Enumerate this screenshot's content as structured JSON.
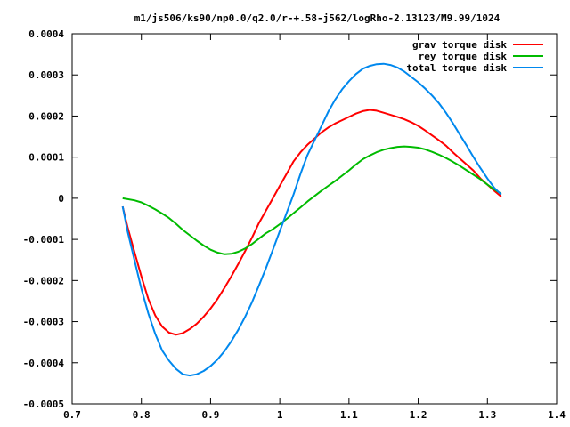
{
  "chart_data": {
    "type": "line",
    "title": "m1/js506/ks90/np0.0/q2.0/r-+.58-j562/logRho-2.13123/M9.99/1024",
    "xlabel": "",
    "ylabel": "",
    "xlim": [
      0.7,
      1.4
    ],
    "ylim": [
      -0.0005,
      0.0004
    ],
    "xticks": [
      0.7,
      0.8,
      0.9,
      1.0,
      1.1,
      1.2,
      1.3,
      1.4
    ],
    "xtick_labels": [
      "0.7",
      "0.8",
      "0.9",
      "1",
      "1.1",
      "1.2",
      "1.3",
      "1.4"
    ],
    "yticks": [
      -0.0005,
      -0.0004,
      -0.0003,
      -0.0002,
      -0.0001,
      0,
      0.0001,
      0.0002,
      0.0003,
      0.0004
    ],
    "ytick_labels": [
      "-0.0005",
      "-0.0004",
      "-0.0003",
      "-0.0002",
      "-0.0001",
      "0",
      "0.0001",
      "0.0002",
      "0.0003",
      "0.0004"
    ],
    "grid": false,
    "legend_position": "top-right",
    "series": [
      {
        "name": "grav torque disk",
        "color": "#ff0000",
        "x": [
          0.773,
          0.78,
          0.79,
          0.8,
          0.81,
          0.82,
          0.83,
          0.84,
          0.85,
          0.86,
          0.87,
          0.88,
          0.89,
          0.9,
          0.91,
          0.92,
          0.93,
          0.94,
          0.95,
          0.96,
          0.97,
          0.98,
          0.99,
          1.0,
          1.01,
          1.02,
          1.03,
          1.04,
          1.05,
          1.06,
          1.07,
          1.08,
          1.09,
          1.1,
          1.11,
          1.12,
          1.13,
          1.14,
          1.15,
          1.16,
          1.17,
          1.18,
          1.19,
          1.2,
          1.21,
          1.22,
          1.23,
          1.24,
          1.25,
          1.26,
          1.27,
          1.28,
          1.29,
          1.3,
          1.31,
          1.32
        ],
        "y": [
          -2e-05,
          -7e-05,
          -0.00013,
          -0.00019,
          -0.000245,
          -0.000285,
          -0.000312,
          -0.000327,
          -0.000332,
          -0.000328,
          -0.000318,
          -0.000305,
          -0.000288,
          -0.000268,
          -0.000245,
          -0.000218,
          -0.00019,
          -0.00016,
          -0.000128,
          -9.5e-05,
          -6e-05,
          -3e-05,
          0.0,
          3e-05,
          6e-05,
          9e-05,
          0.000112,
          0.00013,
          0.000145,
          0.00016,
          0.000172,
          0.000182,
          0.00019,
          0.000198,
          0.000206,
          0.000212,
          0.000215,
          0.000213,
          0.000208,
          0.000203,
          0.000198,
          0.000192,
          0.000185,
          0.000176,
          0.000165,
          0.000153,
          0.000141,
          0.000128,
          0.000112,
          9.7e-05,
          8.2e-05,
          6.7e-05,
          4.8e-05,
          3.3e-05,
          1.8e-05,
          4e-06
        ]
      },
      {
        "name": "rey torque disk",
        "color": "#00bb00",
        "x": [
          0.773,
          0.79,
          0.8,
          0.81,
          0.82,
          0.83,
          0.84,
          0.85,
          0.86,
          0.87,
          0.88,
          0.89,
          0.9,
          0.91,
          0.92,
          0.93,
          0.94,
          0.95,
          0.96,
          0.97,
          0.98,
          0.99,
          1.0,
          1.01,
          1.02,
          1.03,
          1.04,
          1.05,
          1.06,
          1.07,
          1.08,
          1.09,
          1.1,
          1.11,
          1.12,
          1.13,
          1.14,
          1.15,
          1.16,
          1.17,
          1.18,
          1.19,
          1.2,
          1.21,
          1.22,
          1.23,
          1.24,
          1.25,
          1.26,
          1.27,
          1.28,
          1.29,
          1.3,
          1.31,
          1.32
        ],
        "y": [
          0.0,
          -5e-06,
          -1e-05,
          -1.8e-05,
          -2.7e-05,
          -3.7e-05,
          -4.8e-05,
          -6.2e-05,
          -7.7e-05,
          -9e-05,
          -0.000103,
          -0.000115,
          -0.000125,
          -0.000132,
          -0.000136,
          -0.000135,
          -0.00013,
          -0.000122,
          -0.000111,
          -9.8e-05,
          -8.5e-05,
          -7.5e-05,
          -6.3e-05,
          -5e-05,
          -3.6e-05,
          -2.2e-05,
          -8e-06,
          5e-06,
          1.8e-05,
          3e-05,
          4.2e-05,
          5.5e-05,
          6.8e-05,
          8.2e-05,
          9.5e-05,
          0.000104,
          0.000112,
          0.000118,
          0.000122,
          0.000125,
          0.000126,
          0.000125,
          0.000123,
          0.000119,
          0.000113,
          0.000106,
          9.8e-05,
          8.9e-05,
          7.9e-05,
          6.8e-05,
          5.7e-05,
          4.6e-05,
          3.3e-05,
          2.1e-05,
          1.1e-05
        ]
      },
      {
        "name": "total torque disk",
        "color": "#0088ee",
        "x": [
          0.773,
          0.78,
          0.79,
          0.8,
          0.81,
          0.82,
          0.83,
          0.84,
          0.85,
          0.86,
          0.87,
          0.88,
          0.89,
          0.9,
          0.91,
          0.92,
          0.93,
          0.94,
          0.95,
          0.96,
          0.97,
          0.98,
          0.99,
          1.0,
          1.01,
          1.02,
          1.03,
          1.04,
          1.05,
          1.06,
          1.07,
          1.08,
          1.09,
          1.1,
          1.11,
          1.12,
          1.13,
          1.14,
          1.15,
          1.16,
          1.17,
          1.18,
          1.19,
          1.2,
          1.21,
          1.22,
          1.23,
          1.24,
          1.25,
          1.26,
          1.27,
          1.28,
          1.29,
          1.3,
          1.31,
          1.32
        ],
        "y": [
          -2e-05,
          -8e-05,
          -0.00015,
          -0.00022,
          -0.00028,
          -0.00033,
          -0.00037,
          -0.000395,
          -0.000415,
          -0.000428,
          -0.000431,
          -0.000428,
          -0.00042,
          -0.000408,
          -0.000392,
          -0.000372,
          -0.000348,
          -0.00032,
          -0.000288,
          -0.000252,
          -0.000212,
          -0.00017,
          -0.000125,
          -8e-05,
          -3.5e-05,
          1e-05,
          6e-05,
          0.000105,
          0.00014,
          0.000175,
          0.00021,
          0.00024,
          0.000265,
          0.000285,
          0.000302,
          0.000315,
          0.000322,
          0.000326,
          0.000327,
          0.000324,
          0.000318,
          0.000308,
          0.000295,
          0.000282,
          0.000267,
          0.00025,
          0.000231,
          0.000208,
          0.000183,
          0.000155,
          0.000128,
          0.0001,
          7.3e-05,
          4.8e-05,
          2.5e-05,
          9e-06
        ]
      }
    ]
  }
}
